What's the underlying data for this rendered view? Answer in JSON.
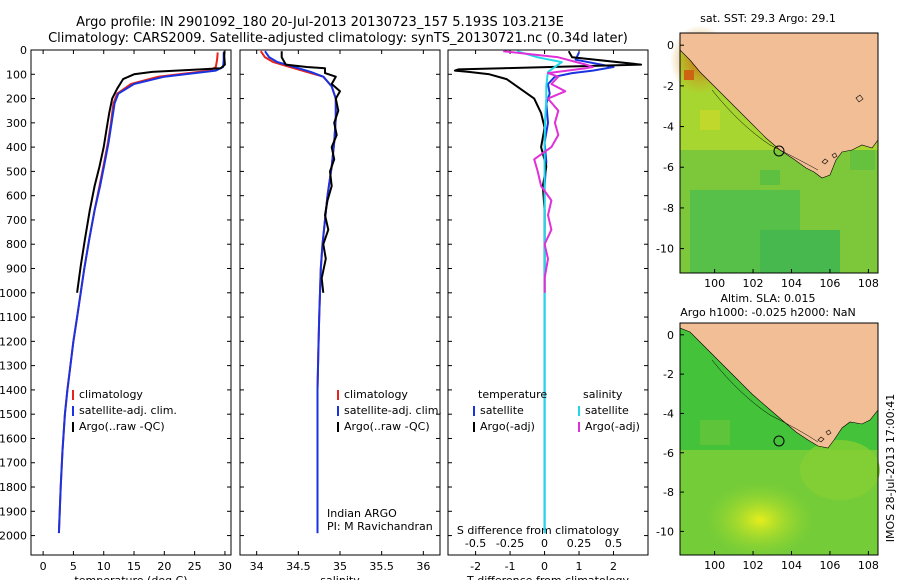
{
  "header": {
    "title_line1": "Argo profile: IN 2901092_180 20-Jul-2013 20130723_157 5.193S 103.213E",
    "title_line2": "Climatology: CARS2009. Satellite-adjusted climatology: synTS_20130721.nc (0.34d later)"
  },
  "side_text": "IMOS 28-Jul-2013 17:00:41",
  "colors": {
    "climatology": "#e8221c",
    "satellite": "#1a33e0",
    "argo": "#000000",
    "sat_diff": "#22d8e8",
    "argo_diff": "#e030d8",
    "land": "#f2be96",
    "ocean_green": "#4cc23c"
  },
  "chart_data": [
    {
      "type": "line",
      "xlabel": "temperature (deg C)",
      "ylabel": "",
      "xlim": [
        -2,
        31
      ],
      "ylim": [
        0,
        2080
      ],
      "xticks": [
        0,
        5,
        10,
        15,
        20,
        25,
        30
      ],
      "yticks": [
        0,
        100,
        200,
        300,
        400,
        500,
        600,
        700,
        800,
        900,
        1000,
        1100,
        1200,
        1300,
        1400,
        1500,
        1600,
        1700,
        1800,
        1900,
        2000
      ],
      "legend": [
        "climatology",
        "satellite-adj. clim.",
        "Argo(..raw -QC)"
      ],
      "series": [
        {
          "name": "climatology",
          "color_key": "climatology",
          "x": [
            28.8,
            28.7,
            28.5,
            27.5,
            24,
            19,
            14.5,
            12.2,
            11.6,
            11.2,
            10.7,
            10.1,
            9.3,
            8.5,
            7.6,
            6.8,
            6.2,
            5.6,
            5.0,
            4.5,
            4.0,
            3.6,
            3.2,
            2.9,
            2.6
          ],
          "y": [
            10,
            40,
            70,
            85,
            95,
            110,
            140,
            180,
            220,
            300,
            380,
            460,
            560,
            660,
            780,
            900,
            1000,
            1100,
            1200,
            1300,
            1400,
            1500,
            1650,
            1800,
            1990
          ]
        },
        {
          "name": "satellite-adj. clim.",
          "color_key": "satellite",
          "x": [
            29.8,
            29.8,
            29.7,
            28.5,
            25,
            20,
            15,
            12.4,
            11.8,
            11.3,
            10.8,
            10.2,
            9.4,
            8.5,
            7.6,
            6.8,
            6.2,
            5.6,
            5.0,
            4.5,
            4.0,
            3.6,
            3.2,
            2.9,
            2.6
          ],
          "y": [
            10,
            40,
            70,
            85,
            95,
            110,
            140,
            180,
            220,
            300,
            380,
            460,
            560,
            660,
            780,
            900,
            1000,
            1100,
            1200,
            1300,
            1400,
            1500,
            1650,
            1800,
            1990
          ]
        },
        {
          "name": "Argo(..raw -QC)",
          "color_key": "argo",
          "x": [
            29.9,
            29.9,
            30.0,
            29.3,
            26,
            22,
            18,
            15,
            13.2,
            12.2,
            11.4,
            10.9,
            10.5,
            10.0,
            9.3,
            8.5,
            7.7,
            6.9,
            6.2,
            5.6
          ],
          "y": [
            5,
            30,
            60,
            75,
            80,
            85,
            90,
            100,
            120,
            160,
            200,
            260,
            320,
            400,
            480,
            560,
            660,
            780,
            890,
            1000
          ]
        }
      ]
    },
    {
      "type": "line",
      "xlabel": "salinity",
      "xlim": [
        33.8,
        36.2
      ],
      "ylim": [
        0,
        2080
      ],
      "xticks": [
        34,
        34.5,
        35,
        35.5,
        36
      ],
      "yticks": [
        0,
        100,
        200,
        300,
        400,
        500,
        600,
        700,
        800,
        900,
        1000,
        1100,
        1200,
        1300,
        1400,
        1500,
        1600,
        1700,
        1800,
        1900,
        2000
      ],
      "legend": [
        "climatology",
        "satellite-adj. clim.",
        "Argo(..raw -QC)"
      ],
      "annotation_lines": [
        "Indian ARGO",
        "PI: M Ravichandran"
      ],
      "series": [
        {
          "name": "climatology",
          "color_key": "climatology",
          "x": [
            34.05,
            34.1,
            34.2,
            34.4,
            34.6,
            34.8,
            34.9,
            34.95,
            34.95,
            34.93,
            34.9,
            34.85,
            34.82,
            34.79,
            34.77,
            34.76,
            34.75,
            34.74,
            34.73,
            34.73,
            34.73
          ],
          "y": [
            5,
            30,
            50,
            70,
            90,
            110,
            150,
            200,
            280,
            380,
            480,
            600,
            700,
            800,
            900,
            1000,
            1100,
            1250,
            1400,
            1600,
            1990
          ]
        },
        {
          "name": "satellite-adj. clim.",
          "color_key": "satellite",
          "x": [
            34.1,
            34.15,
            34.25,
            34.45,
            34.65,
            34.8,
            34.9,
            34.95,
            34.95,
            34.93,
            34.9,
            34.85,
            34.82,
            34.79,
            34.77,
            34.76,
            34.75,
            34.74,
            34.73,
            34.73,
            34.73
          ],
          "y": [
            5,
            30,
            50,
            70,
            90,
            110,
            150,
            200,
            280,
            380,
            480,
            600,
            700,
            800,
            900,
            1000,
            1100,
            1250,
            1400,
            1600,
            1990
          ]
        },
        {
          "name": "Argo(..raw -QC)",
          "color_key": "argo",
          "x": [
            34.3,
            34.3,
            34.35,
            34.6,
            34.82,
            34.82,
            34.95,
            34.9,
            35.0,
            34.95,
            34.98,
            34.93,
            34.96,
            34.9,
            34.93,
            34.88,
            34.9,
            34.85,
            34.82,
            34.86,
            34.8,
            34.83,
            34.78,
            34.8
          ],
          "y": [
            5,
            30,
            60,
            70,
            75,
            95,
            110,
            140,
            170,
            200,
            250,
            300,
            350,
            400,
            450,
            500,
            560,
            620,
            680,
            740,
            800,
            860,
            940,
            1000
          ]
        }
      ]
    },
    {
      "type": "line",
      "xlabel": "T difference from climatology",
      "x2label": "S difference from climatology",
      "xlim": [
        -2.8,
        3.0
      ],
      "ylim": [
        0,
        2080
      ],
      "xticks": [
        -2,
        -1,
        0,
        1,
        2
      ],
      "x2ticks": [
        -0.5,
        -0.25,
        0,
        0.25,
        0.5
      ],
      "x2_per_x": 0.25,
      "yticks": [
        0,
        100,
        200,
        300,
        400,
        500,
        600,
        700,
        800,
        900,
        1000,
        1100,
        1200,
        1300,
        1400,
        1500,
        1600,
        1700,
        1800,
        1900,
        2000
      ],
      "legend_headers": [
        "temperature",
        "salinity"
      ],
      "legend": [
        "satellite",
        "Argo(-adj)",
        "satellite",
        "Argo(-adj)"
      ],
      "series": [
        {
          "name": "satellite",
          "color_key": "satellite",
          "x": [
            1.0,
            0.9,
            2.0,
            1.4,
            0.8,
            0.3,
            0.1,
            0.15,
            0.05,
            0.1,
            0.0,
            0.05,
            0.0,
            0.0,
            0.0,
            0.0,
            0.0,
            0.0,
            0.0,
            0.0,
            0.0
          ],
          "y": [
            10,
            40,
            70,
            85,
            95,
            110,
            140,
            180,
            220,
            300,
            380,
            460,
            560,
            660,
            780,
            900,
            1000,
            1200,
            1400,
            1700,
            1990
          ]
        },
        {
          "name": "Argo(-adj)",
          "color_key": "argo",
          "x": [
            0.7,
            0.8,
            2.8,
            -1.2,
            -2.5,
            -2.6,
            -2.2,
            -1.6,
            -1.1,
            -0.7,
            -0.3,
            -0.1,
            0.0,
            -0.1,
            0.05,
            -0.05,
            0.0,
            0.0,
            0.0,
            0.0
          ],
          "y": [
            5,
            30,
            60,
            75,
            80,
            85,
            90,
            100,
            120,
            160,
            200,
            260,
            320,
            400,
            480,
            560,
            660,
            780,
            890,
            1000
          ]
        },
        {
          "name": "satellite",
          "color_key": "sat_diff",
          "x": [
            -0.8,
            -0.2,
            0.5,
            0.3,
            0.1,
            0.08,
            0.05,
            0.05,
            0.02,
            0.0,
            0.0,
            0.0,
            0.0,
            0.0,
            0.0,
            0.0,
            0.0,
            0.0,
            0.0,
            0.0,
            0.0
          ],
          "y": [
            5,
            30,
            50,
            70,
            90,
            110,
            150,
            200,
            280,
            380,
            480,
            600,
            700,
            800,
            900,
            1000,
            1100,
            1250,
            1400,
            1600,
            1990
          ]
        },
        {
          "name": "Argo(-adj)",
          "color_key": "argo_diff",
          "x": [
            -1.2,
            0.4,
            1.2,
            1.4,
            1.2,
            0.1,
            0.4,
            0.2,
            0.6,
            0.1,
            0.4,
            0.3,
            0.4,
            0.2,
            -0.3,
            -0.2,
            -0.1,
            0.2,
            0.1,
            0.2,
            0.0,
            0.1,
            0.0,
            0.0
          ],
          "y": [
            5,
            30,
            60,
            70,
            75,
            95,
            110,
            140,
            170,
            200,
            250,
            300,
            350,
            400,
            450,
            500,
            560,
            620,
            680,
            740,
            800,
            860,
            940,
            1000
          ]
        }
      ]
    },
    {
      "type": "heatmap",
      "title": "sat. SST: 29.3 Argo: 29.1",
      "xlim": [
        98.2,
        108.5
      ],
      "ylim": [
        -11.2,
        0.6
      ],
      "xticks": [
        100,
        102,
        104,
        106,
        108
      ],
      "yticks": [
        0,
        -2,
        -4,
        -6,
        -8,
        -10
      ],
      "marker": {
        "lon": 103.213,
        "lat": -5.193
      }
    },
    {
      "type": "heatmap",
      "title_lines": [
        "Altim. SLA: 0.015",
        "Argo h1000: -0.025 h2000: NaN"
      ],
      "xlim": [
        98.2,
        108.5
      ],
      "ylim": [
        -11.2,
        0.6
      ],
      "xticks": [
        100,
        102,
        104,
        106,
        108
      ],
      "yticks": [
        0,
        -2,
        -4,
        -6,
        -8,
        -10
      ],
      "marker": {
        "lon": 103.213,
        "lat": -5.193
      }
    }
  ]
}
